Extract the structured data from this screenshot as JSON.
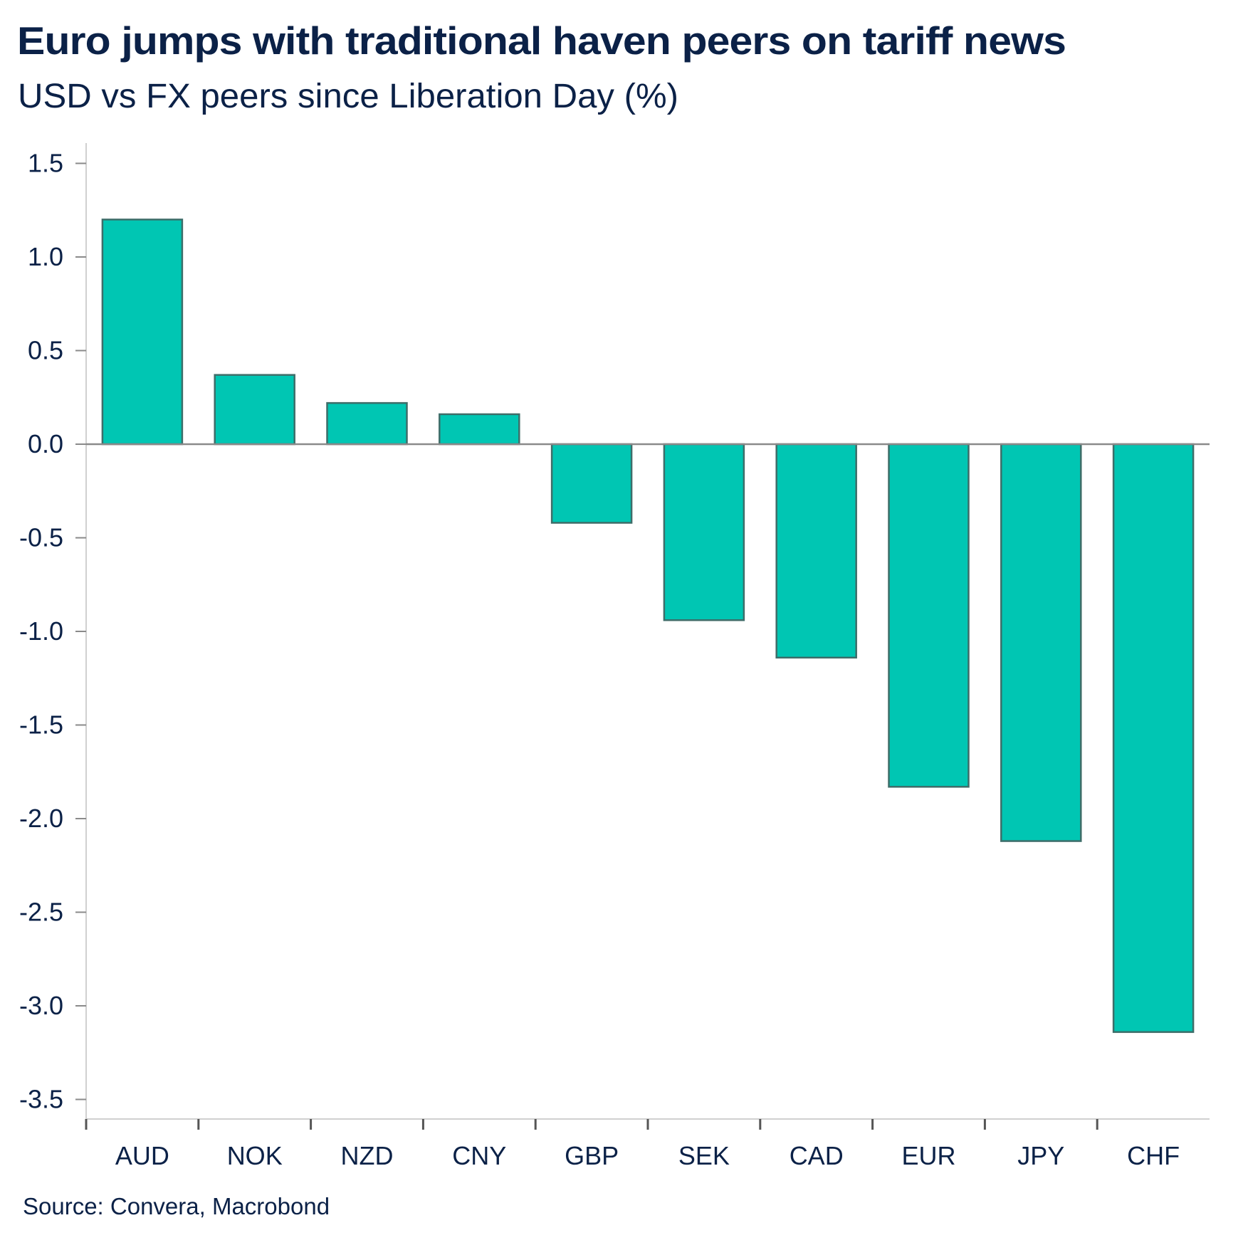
{
  "chart_data": {
    "type": "bar",
    "title": "Euro jumps with traditional haven peers on tariff news",
    "subtitle": "USD vs FX peers since Liberation Day (%)",
    "source": "Source: Convera, Macrobond",
    "xlabel": "",
    "ylabel": "",
    "categories": [
      "AUD",
      "NOK",
      "NZD",
      "CNY",
      "GBP",
      "SEK",
      "CAD",
      "EUR",
      "JPY",
      "CHF"
    ],
    "values": [
      1.2,
      0.37,
      0.22,
      0.16,
      -0.42,
      -0.94,
      -1.14,
      -1.83,
      -2.12,
      -3.14
    ],
    "ylim": [
      -3.6,
      1.6
    ],
    "yticks": [
      1.5,
      1.0,
      0.5,
      0.0,
      -0.5,
      -1.0,
      -1.5,
      -2.0,
      -2.5,
      -3.0,
      -3.5
    ],
    "ytick_labels": [
      "1.5",
      "1.0",
      "0.5",
      "0.0",
      "-0.5",
      "-1.0",
      "-1.5",
      "-2.0",
      "-2.5",
      "-3.0",
      "-3.5"
    ],
    "grid": false,
    "legend": "none",
    "colors": {
      "bar_fill": "#00c6b3",
      "bar_border": "#3e6d69",
      "text": "#0b2147",
      "zero_line": "#8a8a8a",
      "axis_line": "#d0d0d0",
      "tick": "#555555"
    }
  }
}
